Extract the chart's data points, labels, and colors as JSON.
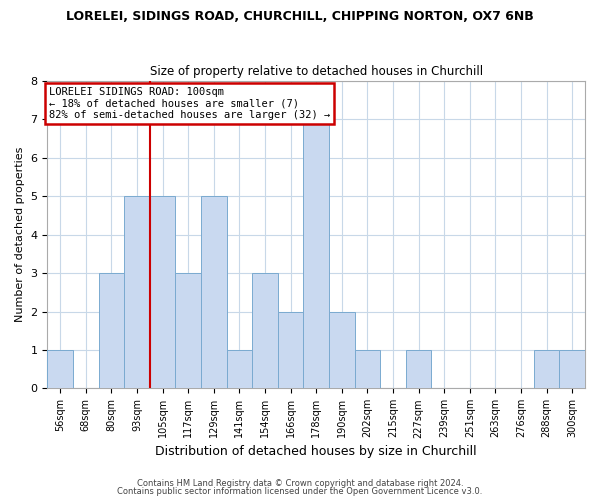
{
  "title": "LORELEI, SIDINGS ROAD, CHURCHILL, CHIPPING NORTON, OX7 6NB",
  "subtitle": "Size of property relative to detached houses in Churchill",
  "xlabel": "Distribution of detached houses by size in Churchill",
  "ylabel": "Number of detached properties",
  "bin_labels": [
    "56sqm",
    "68sqm",
    "80sqm",
    "93sqm",
    "105sqm",
    "117sqm",
    "129sqm",
    "141sqm",
    "154sqm",
    "166sqm",
    "178sqm",
    "190sqm",
    "202sqm",
    "215sqm",
    "227sqm",
    "239sqm",
    "251sqm",
    "263sqm",
    "276sqm",
    "288sqm",
    "300sqm"
  ],
  "bar_heights": [
    1,
    0,
    3,
    5,
    5,
    3,
    5,
    1,
    3,
    2,
    7,
    2,
    1,
    0,
    1,
    0,
    0,
    0,
    0,
    1,
    1
  ],
  "bar_color": "#c9d9f0",
  "bar_edge_color": "#7aaad0",
  "red_line_index": 4,
  "ylim": [
    0,
    8
  ],
  "yticks": [
    0,
    1,
    2,
    3,
    4,
    5,
    6,
    7,
    8
  ],
  "annotation_title": "LORELEI SIDINGS ROAD: 100sqm",
  "annotation_line2": "← 18% of detached houses are smaller (7)",
  "annotation_line3": "82% of semi-detached houses are larger (32) →",
  "annotation_box_color": "#ffffff",
  "annotation_box_edge": "#cc0000",
  "footer1": "Contains HM Land Registry data © Crown copyright and database right 2024.",
  "footer2": "Contains public sector information licensed under the Open Government Licence v3.0.",
  "background_color": "#ffffff",
  "grid_color": "#c8d8e8"
}
